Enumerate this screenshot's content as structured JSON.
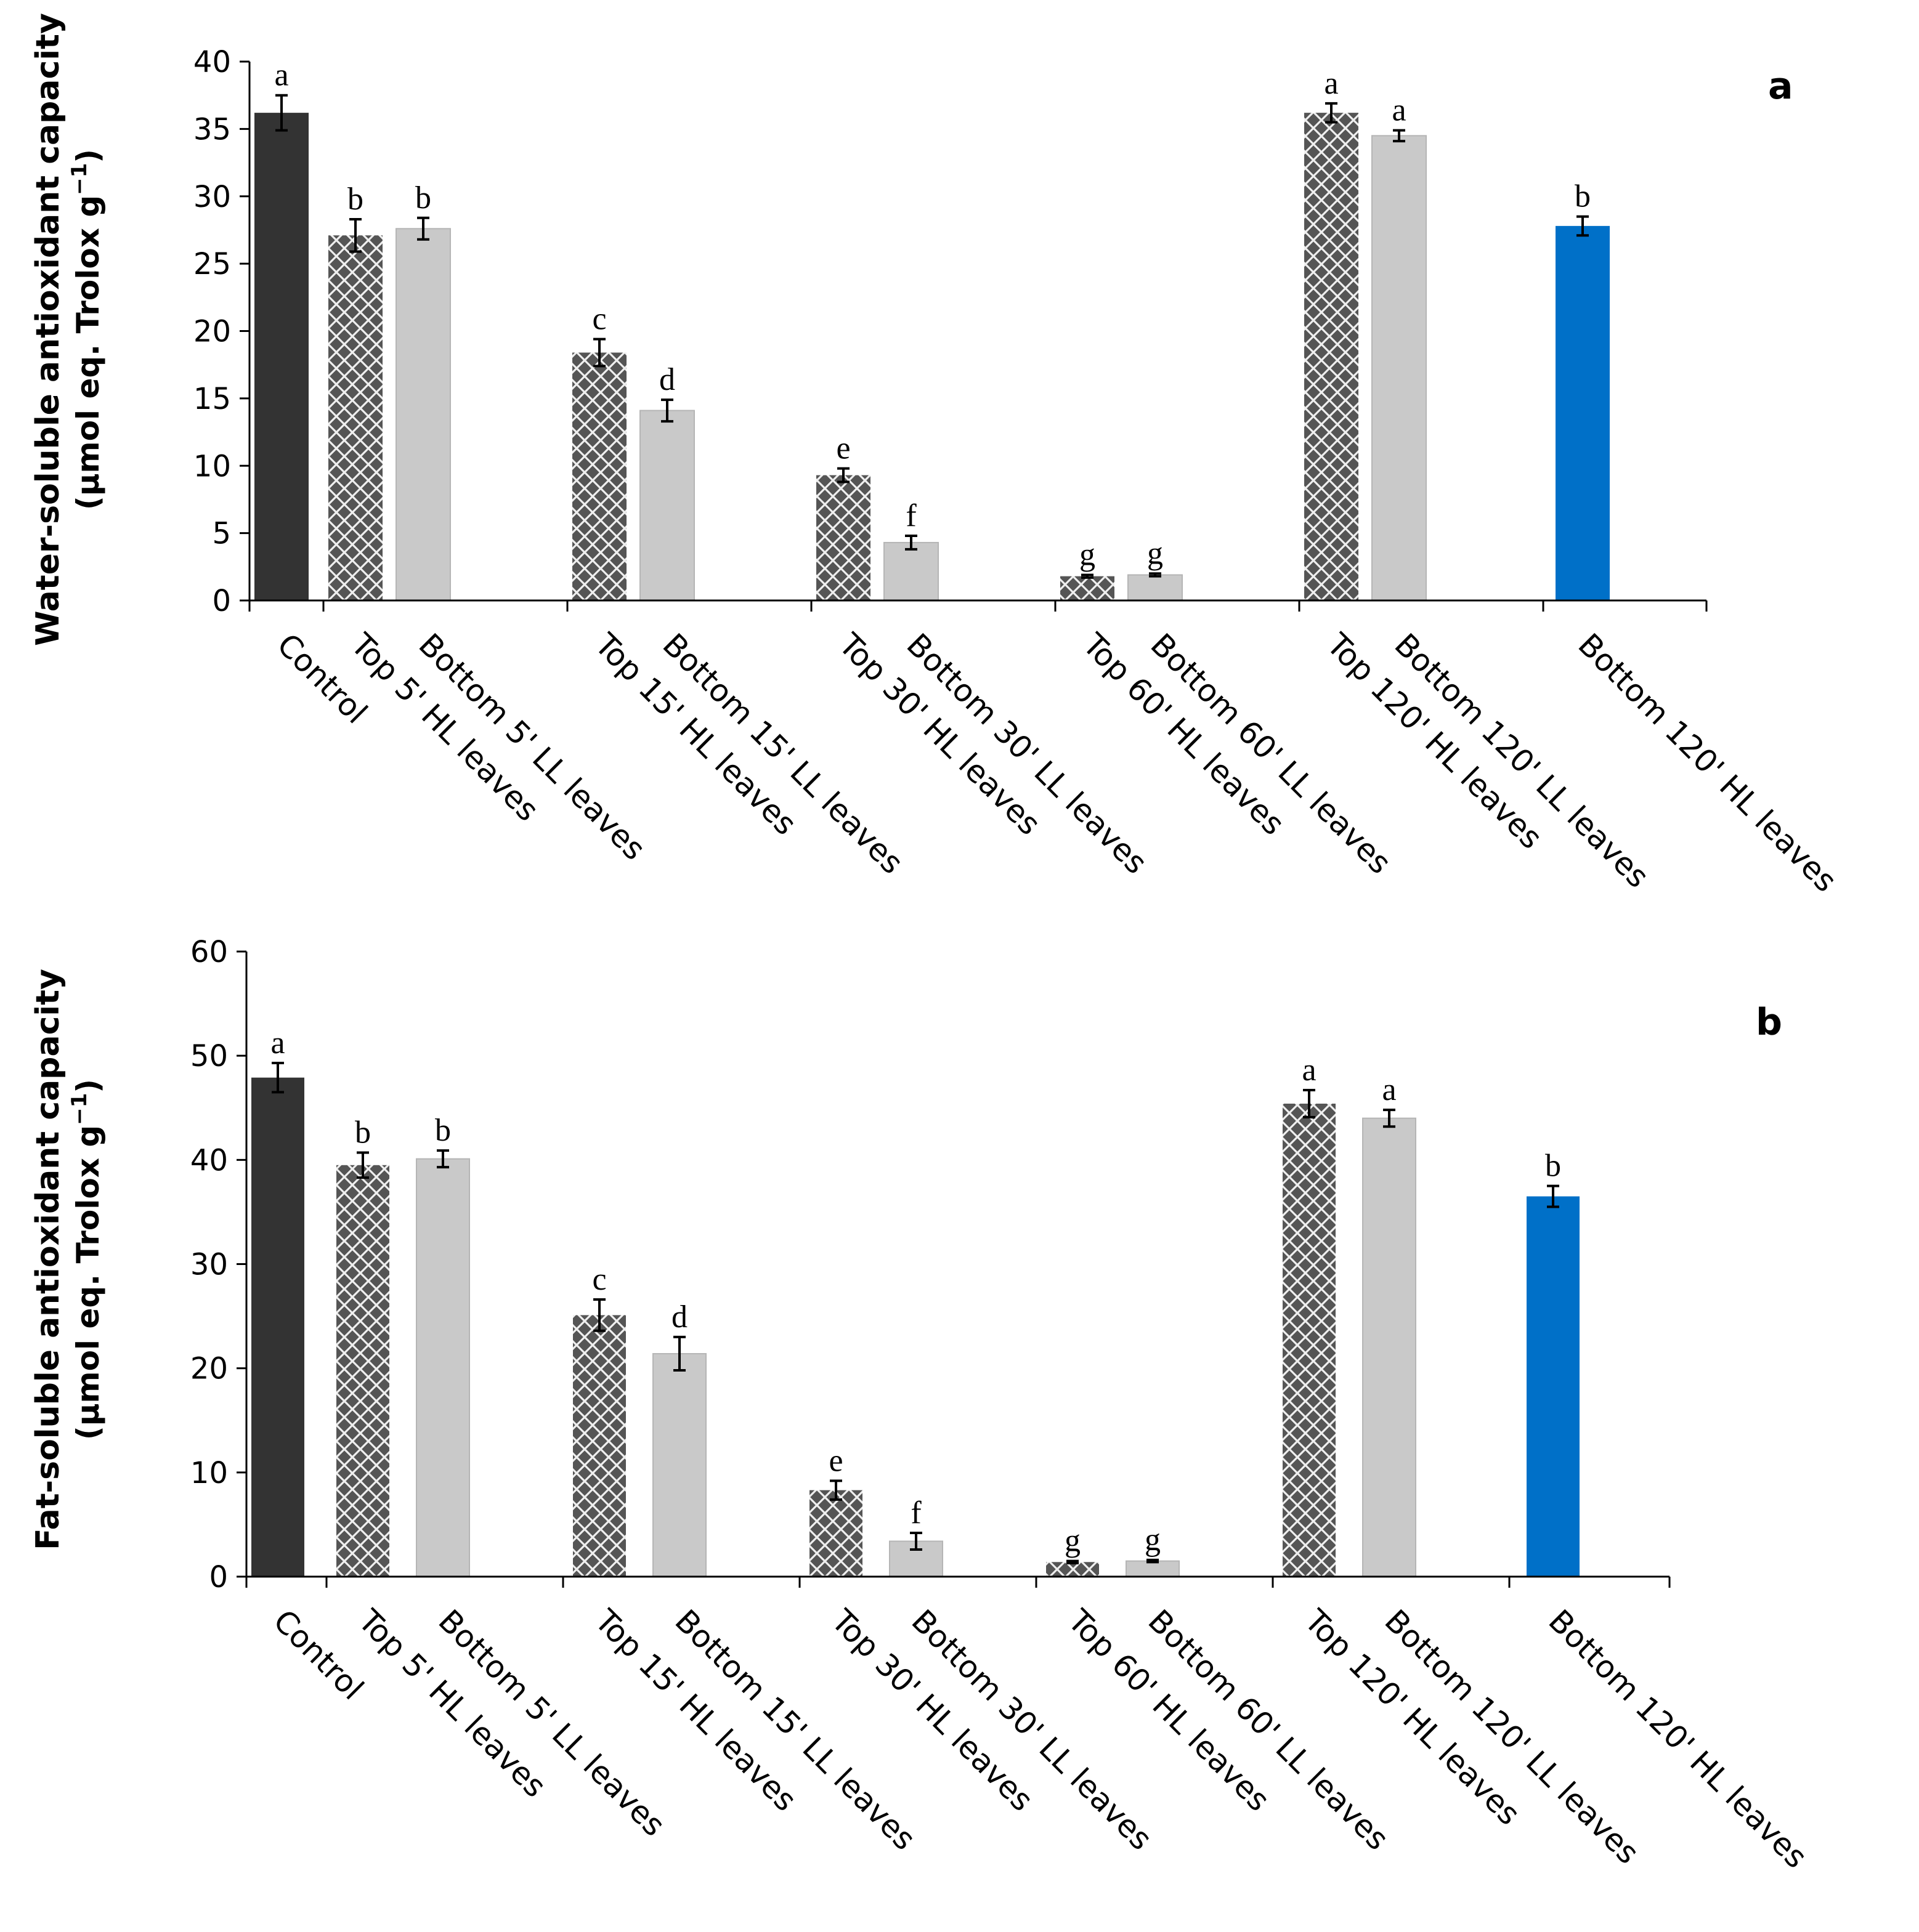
{
  "chart_data": [
    {
      "type": "bar",
      "panel_label": "a",
      "ylabel": "Water-soluble antioxidant capacity",
      "ylabel_units": "(μmol eq. Trolox g",
      "ylabel_units_sup": "−1",
      "ylabel_units_close": ")",
      "ylim": [
        0,
        40
      ],
      "ytick_step": 5,
      "yticks": [
        "0",
        "5",
        "10",
        "15",
        "20",
        "25",
        "30",
        "35",
        "40"
      ],
      "groups": [
        {
          "bars": [
            {
              "label": "Control",
              "value": 36.2,
              "error": 1.3,
              "letter": "a",
              "style": "control"
            }
          ]
        },
        {
          "bars": [
            {
              "label": "Top 5' HL leaves",
              "value": 27.1,
              "error": 1.2,
              "letter": "b",
              "style": "top"
            },
            {
              "label": "Bottom 5' LL leaves",
              "value": 27.6,
              "error": 0.8,
              "letter": "b",
              "style": "bottomLL"
            }
          ]
        },
        {
          "bars": [
            {
              "label": "Top 15' HL leaves",
              "value": 18.4,
              "error": 1.0,
              "letter": "c",
              "style": "top"
            },
            {
              "label": "Bottom 15' LL leaves",
              "value": 14.1,
              "error": 0.8,
              "letter": "d",
              "style": "bottomLL"
            }
          ]
        },
        {
          "bars": [
            {
              "label": "Top 30' HL leaves",
              "value": 9.3,
              "error": 0.5,
              "letter": "e",
              "style": "top"
            },
            {
              "label": "Bottom 30' LL leaves",
              "value": 4.3,
              "error": 0.5,
              "letter": "f",
              "style": "bottomLL"
            }
          ]
        },
        {
          "bars": [
            {
              "label": "Top 60' HL leaves",
              "value": 1.8,
              "error": 0.1,
              "letter": "g",
              "style": "top"
            },
            {
              "label": "Bottom 60' LL leaves",
              "value": 1.9,
              "error": 0.1,
              "letter": "g",
              "style": "bottomLL"
            }
          ]
        },
        {
          "bars": [
            {
              "label": "Top 120' HL leaves",
              "value": 36.2,
              "error": 0.7,
              "letter": "a",
              "style": "top"
            },
            {
              "label": "Bottom 120' LL leaves",
              "value": 34.5,
              "error": 0.4,
              "letter": "a",
              "style": "bottomLL"
            }
          ]
        },
        {
          "bars": [
            {
              "label": "Bottom 120' HL leaves",
              "value": 27.8,
              "error": 0.7,
              "letter": "b",
              "style": "bottomHL"
            }
          ]
        }
      ]
    },
    {
      "type": "bar",
      "panel_label": "b",
      "ylabel": "Fat-soluble antioxidant capacity",
      "ylabel_units": "(μmol eq. Trolox g",
      "ylabel_units_sup": "−1",
      "ylabel_units_close": ")",
      "ylim": [
        0,
        60
      ],
      "ytick_step": 10,
      "yticks": [
        "0",
        "10",
        "20",
        "30",
        "40",
        "50",
        "60"
      ],
      "groups": [
        {
          "bars": [
            {
              "label": "Control",
              "value": 47.9,
              "error": 1.4,
              "letter": "a",
              "style": "control"
            }
          ]
        },
        {
          "bars": [
            {
              "label": "Top 5' HL leaves",
              "value": 39.5,
              "error": 1.2,
              "letter": "b",
              "style": "top"
            },
            {
              "label": "Bottom 5' LL leaves",
              "value": 40.1,
              "error": 0.8,
              "letter": "b",
              "style": "bottomLL"
            }
          ]
        },
        {
          "bars": [
            {
              "label": "Top 15' HL leaves",
              "value": 25.1,
              "error": 1.5,
              "letter": "c",
              "style": "top"
            },
            {
              "label": "Bottom 15' LL leaves",
              "value": 21.4,
              "error": 1.6,
              "letter": "d",
              "style": "bottomLL"
            }
          ]
        },
        {
          "bars": [
            {
              "label": "Top 30' HL leaves",
              "value": 8.3,
              "error": 0.9,
              "letter": "e",
              "style": "top"
            },
            {
              "label": "Bottom 30' LL leaves",
              "value": 3.4,
              "error": 0.8,
              "letter": "f",
              "style": "bottomLL"
            }
          ]
        },
        {
          "bars": [
            {
              "label": "Top 60' HL leaves",
              "value": 1.4,
              "error": 0.1,
              "letter": "g",
              "style": "top"
            },
            {
              "label": "Bottom 60' LL leaves",
              "value": 1.5,
              "error": 0.1,
              "letter": "g",
              "style": "bottomLL"
            }
          ]
        },
        {
          "bars": [
            {
              "label": "Top 120' HL leaves",
              "value": 45.4,
              "error": 1.3,
              "letter": "a",
              "style": "top"
            },
            {
              "label": "Bottom 120' LL leaves",
              "value": 44.0,
              "error": 0.8,
              "letter": "a",
              "style": "bottomLL"
            }
          ]
        },
        {
          "bars": [
            {
              "label": "Bottom 120' HL leaves",
              "value": 36.5,
              "error": 1.0,
              "letter": "b",
              "style": "bottomHL"
            }
          ]
        }
      ]
    }
  ],
  "colors": {
    "control": "#333333",
    "top": "#555555",
    "top_pattern_line": "#f2f2f2",
    "bottomLL": "#c9c9c9",
    "bottomHL": "#0070c8",
    "axis": "#000000"
  }
}
